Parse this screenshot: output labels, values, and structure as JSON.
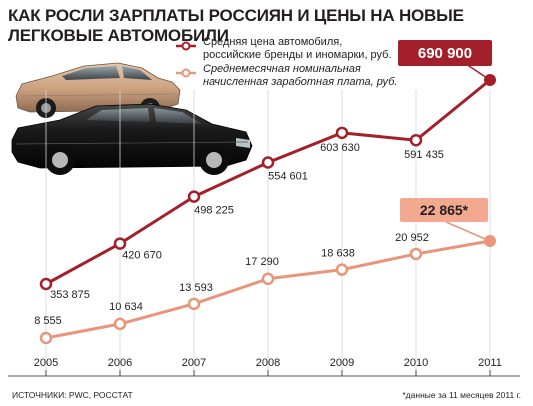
{
  "title": "КАК РОСЛИ ЗАРПЛАТЫ РОССИЯН И ЦЕНЫ НА НОВЫЕ ЛЕГКОВЫЕ АВТОМОБИЛИ",
  "legend": {
    "car_line1": "Средняя цена автомобиля,",
    "car_line2": "российские бренды и иномарки, руб.",
    "wage_line1": "Среднемесячная номинальная",
    "wage_line2": "начисленная заработная плата, руб."
  },
  "source": "ИСТОЧНИКИ: PWC, РОССТАТ",
  "footnote": "*данные за 11 месяцев 2011 г.",
  "colors": {
    "car": "#a3202a",
    "wage": "#e8957a",
    "car_badge": "#a3202a",
    "wage_badge": "#f2a98f"
  },
  "chart_data": {
    "type": "line",
    "x": [
      "2005",
      "2006",
      "2007",
      "2008",
      "2009",
      "2010",
      "2011"
    ],
    "series": [
      {
        "name": "Средняя цена автомобиля, российские бренды и иномарки, руб.",
        "values": [
          353875,
          420670,
          498225,
          554601,
          603630,
          591435,
          690900
        ],
        "labels": [
          "353 875",
          "420 670",
          "498 225",
          "554 601",
          "603 630",
          "591 435",
          "690 900"
        ]
      },
      {
        "name": "Среднемесячная номинальная начисленная заработная плата, руб.",
        "values": [
          8555,
          10634,
          13593,
          17290,
          18638,
          20952,
          22865
        ],
        "labels": [
          "8 555",
          "10 634",
          "13 593",
          "17 290",
          "18 638",
          "20 952",
          "22 865*"
        ]
      }
    ]
  }
}
